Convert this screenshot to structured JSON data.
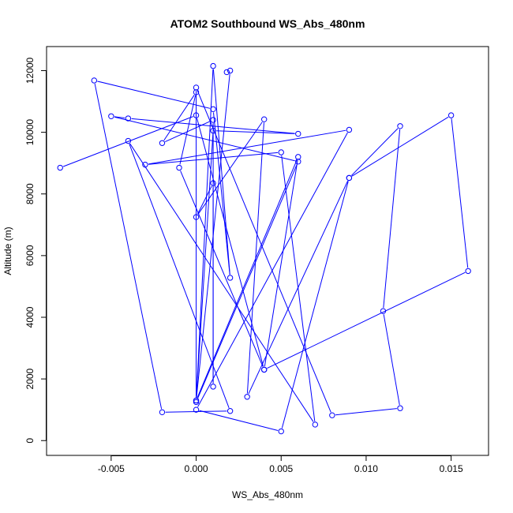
{
  "chart_data": {
    "type": "line",
    "title": "ATOM2 Southbound WS_Abs_480nm",
    "xlabel": "WS_Abs_480nm",
    "ylabel": "Altitude (m)",
    "xlim": [
      -0.0088,
      0.0172
    ],
    "ylim": [
      -480,
      12780
    ],
    "x_ticks": [
      -0.005,
      0.0,
      0.005,
      0.01,
      0.015
    ],
    "x_tick_labels": [
      "-0.005",
      "0.000",
      "0.005",
      "0.010",
      "0.015"
    ],
    "y_ticks": [
      0,
      2000,
      4000,
      6000,
      8000,
      10000,
      12000
    ],
    "y_tick_labels": [
      "0",
      "2000",
      "4000",
      "6000",
      "8000",
      "10000",
      "12000"
    ],
    "grid": false,
    "series": [
      {
        "color": "#0000ff",
        "marker": "open-circle",
        "points": [
          {
            "x": 0.0018,
            "y": 11950
          },
          {
            "x": 0.002,
            "y": 12000
          },
          {
            "x": 0.0,
            "y": 1300
          },
          {
            "x": 0.001,
            "y": 10050
          },
          {
            "x": 0.006,
            "y": 9950
          },
          {
            "x": -0.004,
            "y": 10450
          },
          {
            "x": -0.005,
            "y": 10520
          },
          {
            "x": 0.006,
            "y": 9050
          },
          {
            "x": 0.0,
            "y": 1250
          },
          {
            "x": 0.001,
            "y": 12150
          },
          {
            "x": 0.002,
            "y": 5280
          },
          {
            "x": 0.001,
            "y": 10750
          },
          {
            "x": -0.006,
            "y": 11680
          },
          {
            "x": -0.002,
            "y": 920
          },
          {
            "x": 0.002,
            "y": 960
          },
          {
            "x": -0.004,
            "y": 9720
          },
          {
            "x": 0.007,
            "y": 520
          },
          {
            "x": 0.005,
            "y": 9350
          },
          {
            "x": -0.003,
            "y": 8950
          },
          {
            "x": 0.009,
            "y": 10080
          },
          {
            "x": 0.0,
            "y": 1000
          },
          {
            "x": 0.005,
            "y": 300
          },
          {
            "x": 0.009,
            "y": 8520
          },
          {
            "x": 0.015,
            "y": 10550
          },
          {
            "x": 0.016,
            "y": 5500
          },
          {
            "x": 0.004,
            "y": 2300
          },
          {
            "x": 0.006,
            "y": 9200
          },
          {
            "x": 0.0,
            "y": 1300
          },
          {
            "x": 0.0,
            "y": 11450
          },
          {
            "x": 0.008,
            "y": 820
          },
          {
            "x": 0.012,
            "y": 1050
          },
          {
            "x": 0.011,
            "y": 4200
          },
          {
            "x": 0.012,
            "y": 10200
          },
          {
            "x": 0.009,
            "y": 8520
          },
          {
            "x": 0.003,
            "y": 1420
          },
          {
            "x": 0.004,
            "y": 10420
          },
          {
            "x": 0.0,
            "y": 7250
          },
          {
            "x": 0.001,
            "y": 8350
          },
          {
            "x": 0.001,
            "y": 1750
          },
          {
            "x": 0.001,
            "y": 10400
          },
          {
            "x": -0.002,
            "y": 9650
          },
          {
            "x": 0.0,
            "y": 11300
          },
          {
            "x": -0.001,
            "y": 8850
          },
          {
            "x": 0.004,
            "y": 2300
          },
          {
            "x": 0.0,
            "y": 10550
          },
          {
            "x": -0.008,
            "y": 8850
          }
        ]
      }
    ]
  }
}
